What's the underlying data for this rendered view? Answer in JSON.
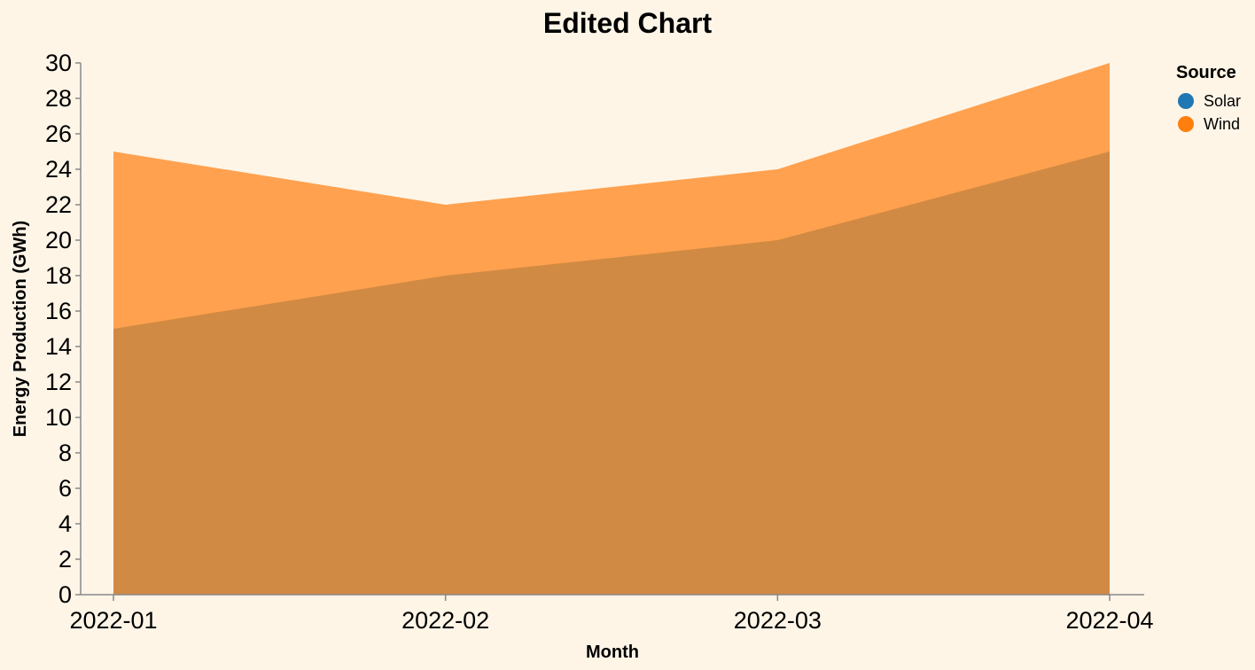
{
  "chart_data": {
    "type": "area",
    "title": "Edited Chart",
    "xlabel": "Month",
    "ylabel": "Energy Production (GWh)",
    "categories": [
      "2022-01",
      "2022-02",
      "2022-03",
      "2022-04"
    ],
    "ylim": [
      0,
      30
    ],
    "yticks": [
      0,
      2,
      4,
      6,
      8,
      10,
      12,
      14,
      16,
      18,
      20,
      22,
      24,
      26,
      28,
      30
    ],
    "grid": false,
    "stacked": false,
    "legend": {
      "title": "Source",
      "placement": "top-right",
      "entries": [
        {
          "name": "Solar",
          "color": "#1f77b4"
        },
        {
          "name": "Wind",
          "color": "#ff7f0e"
        }
      ]
    },
    "series": [
      {
        "name": "Wind",
        "values": [
          25,
          22,
          24,
          30
        ],
        "color": "#ffa14f"
      },
      {
        "name": "Solar",
        "values": [
          15,
          18,
          20,
          25
        ],
        "color": "#d18a43"
      }
    ]
  }
}
